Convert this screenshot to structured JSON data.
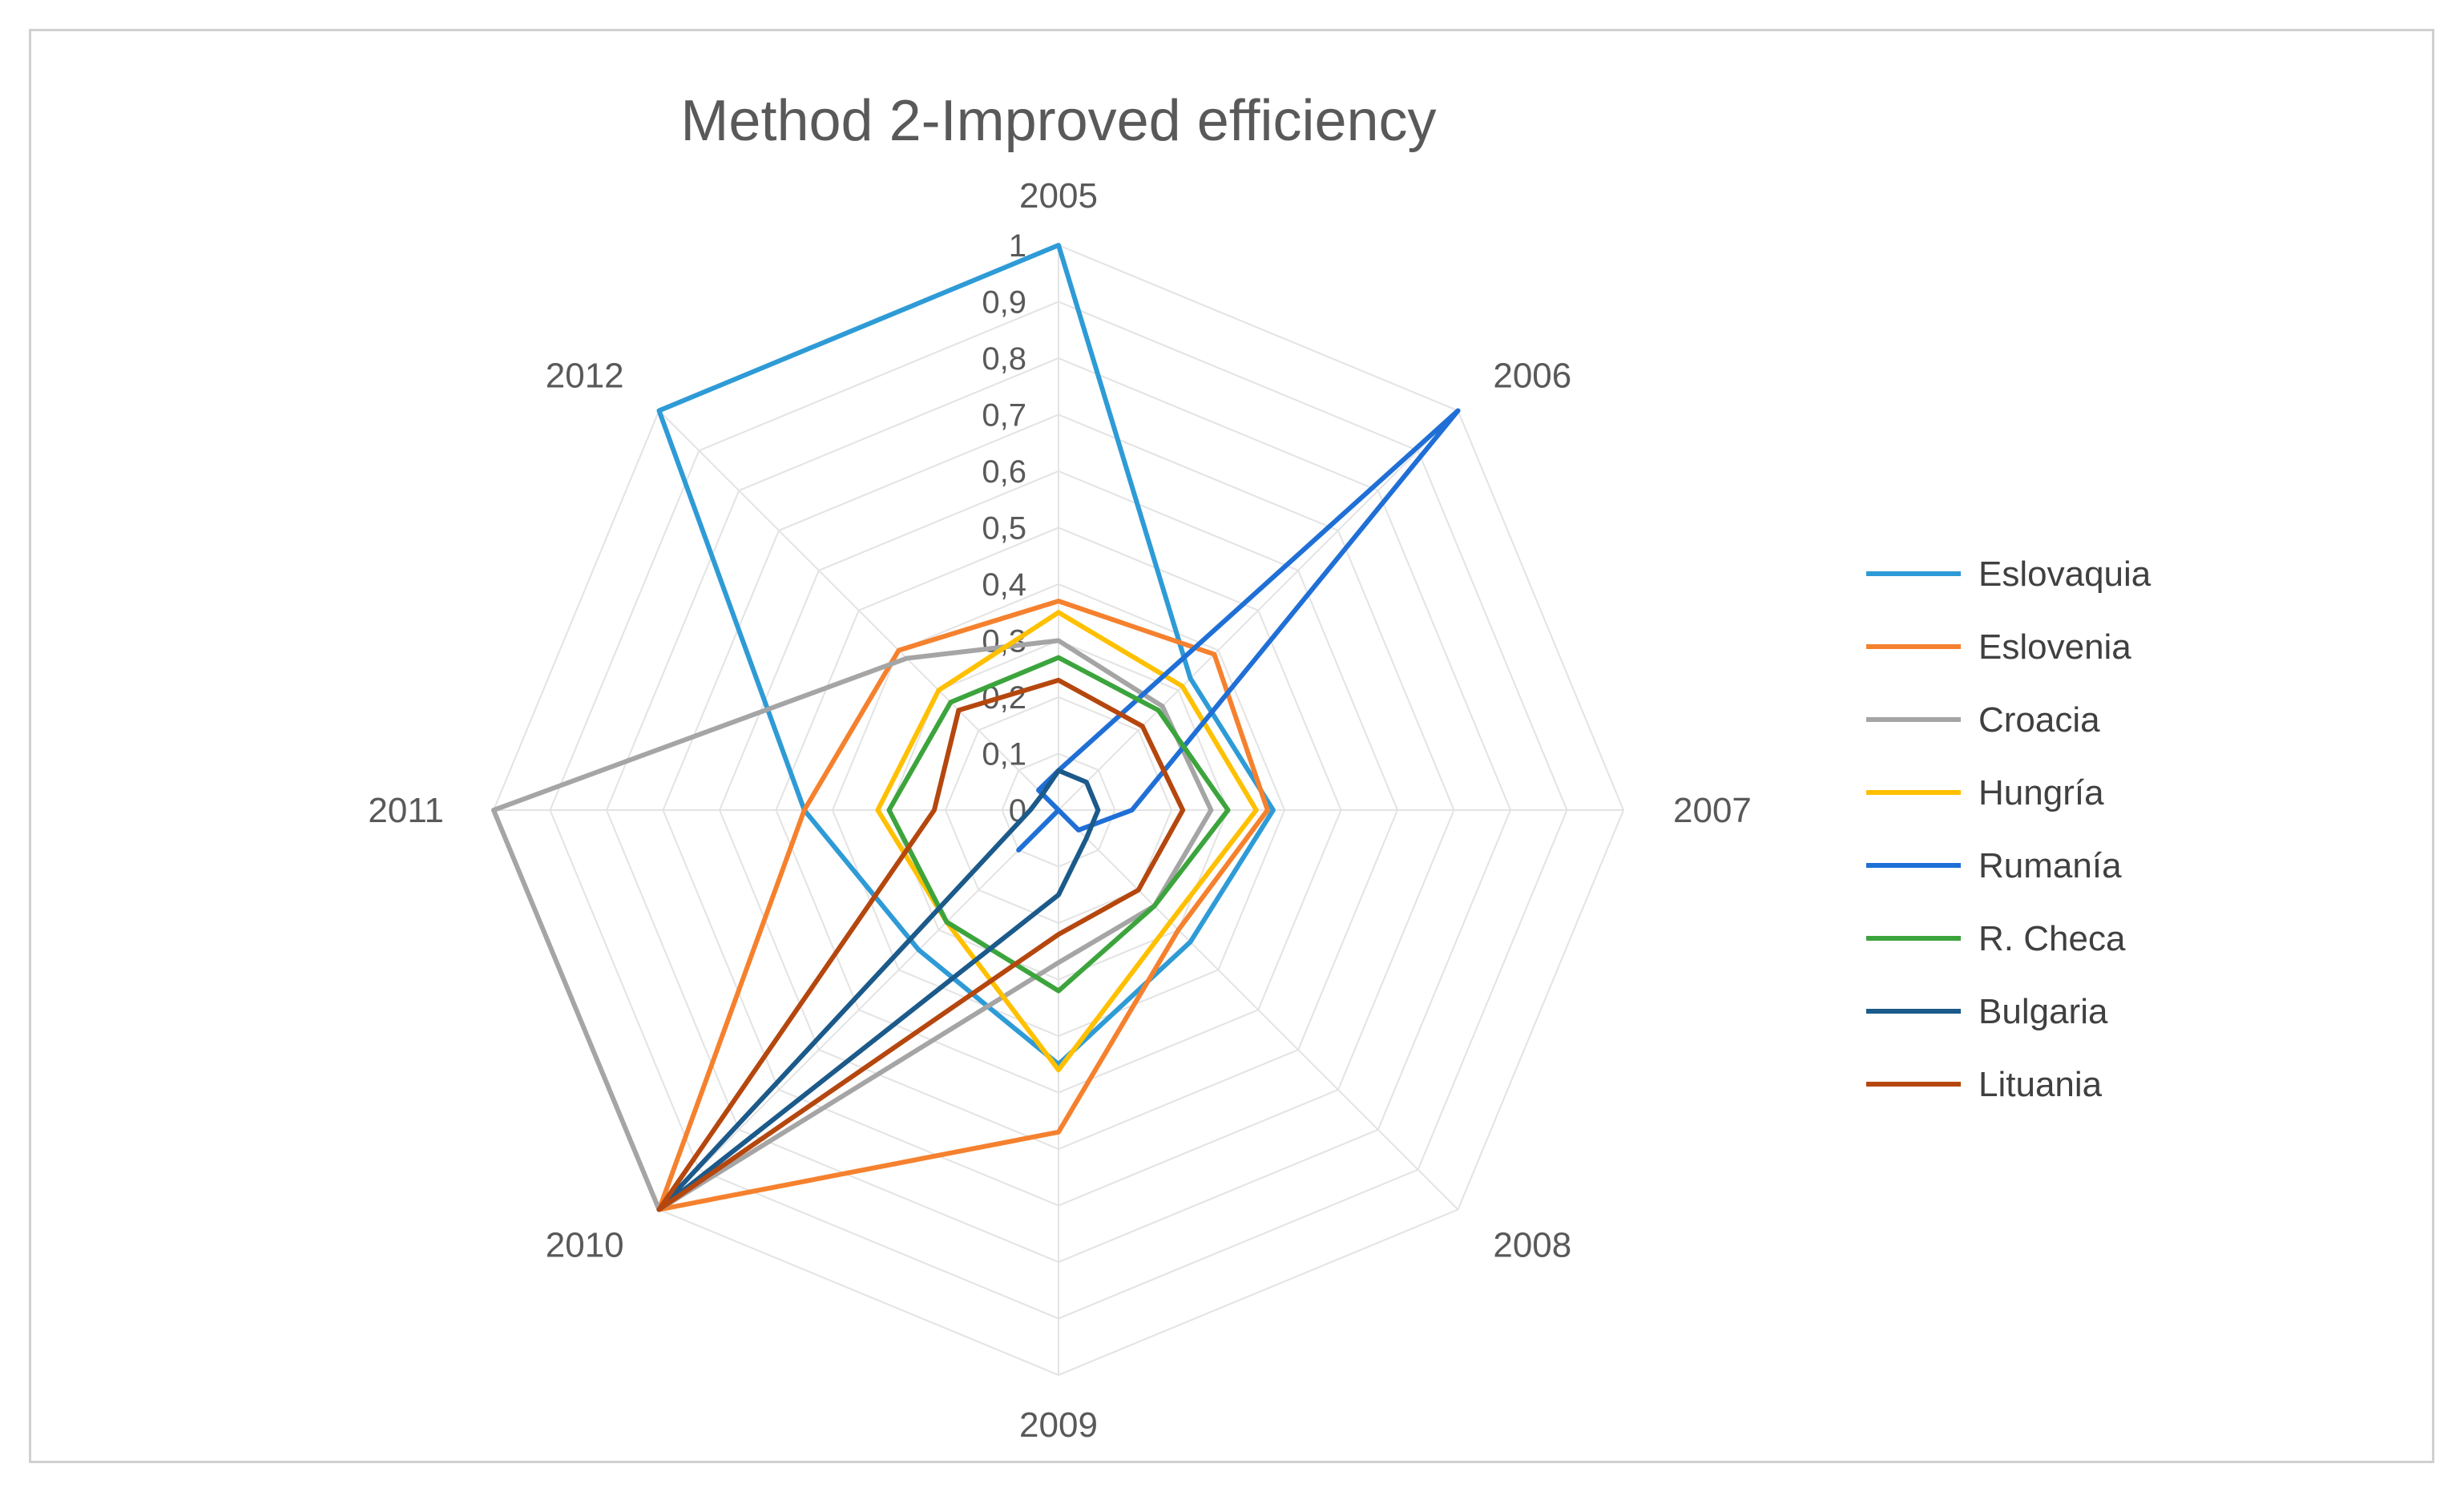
{
  "chart_data": {
    "type": "radar",
    "title": "Method 2-Improved efficiency",
    "categories": [
      "2005",
      "2006",
      "2007",
      "2008",
      "2009",
      "2010",
      "2011",
      "2012"
    ],
    "rlim": [
      0,
      1
    ],
    "ticks": [
      "0",
      "0,1",
      "0,2",
      "0,3",
      "0,4",
      "0,5",
      "0,6",
      "0,7",
      "0,8",
      "0,9",
      "1"
    ],
    "legend_position": "right",
    "series": [
      {
        "name": "Eslovaquia",
        "color": "#2e9bd6",
        "values": [
          1.0,
          0.33,
          0.38,
          0.33,
          0.45,
          0.35,
          0.45,
          1.0
        ]
      },
      {
        "name": "Eslovenia",
        "color": "#f5812e",
        "values": [
          0.37,
          0.39,
          0.37,
          0.3,
          0.57,
          1.0,
          0.45,
          0.4
        ]
      },
      {
        "name": "Croacia",
        "color": "#a5a5a5",
        "values": [
          0.3,
          0.26,
          0.27,
          0.24,
          0.27,
          1.0,
          1.0,
          0.38
        ]
      },
      {
        "name": "Hungría",
        "color": "#ffc000",
        "values": [
          0.35,
          0.31,
          0.35,
          0.28,
          0.46,
          0.28,
          0.32,
          0.3
        ]
      },
      {
        "name": "Rumanía",
        "color": "#1f6fd6",
        "values": [
          0.07,
          1.0,
          0.13,
          0.05,
          0.0,
          0.1,
          0.0,
          0.05
        ]
      },
      {
        "name": "R. Checa",
        "color": "#3ca43c",
        "values": [
          0.27,
          0.25,
          0.3,
          0.24,
          0.32,
          0.28,
          0.3,
          0.27
        ]
      },
      {
        "name": "Bulgaria",
        "color": "#1b5a8a",
        "values": [
          0.07,
          0.07,
          0.07,
          0.07,
          0.15,
          1.0,
          0.05,
          0.04
        ]
      },
      {
        "name": "Lituania",
        "color": "#b5470e",
        "values": [
          0.23,
          0.21,
          0.22,
          0.2,
          0.22,
          1.0,
          0.22,
          0.25
        ]
      }
    ]
  }
}
